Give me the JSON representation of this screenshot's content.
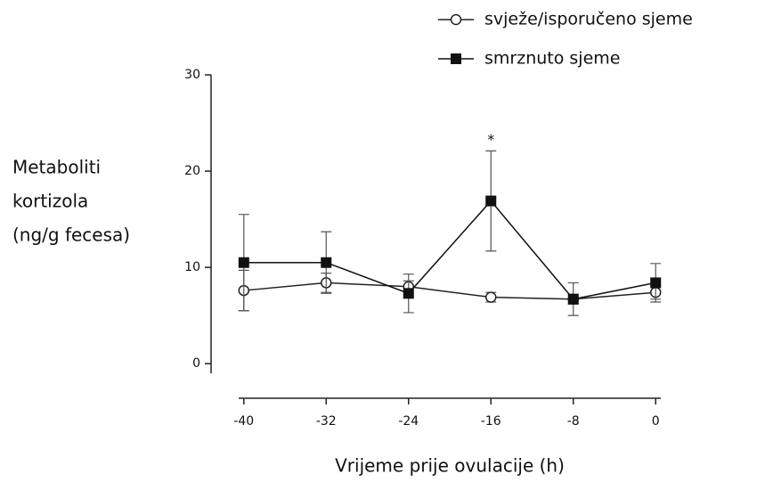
{
  "chart_data": {
    "type": "line",
    "y_label": [
      "Metaboliti",
      "kortizola",
      "(ng/g fecesa)"
    ],
    "x_label": "Vrijeme prije ovulacije (h)",
    "x": [
      -40,
      -32,
      -24,
      -16,
      -8,
      0
    ],
    "series": [
      {
        "name": "svježe/isporučeno sjeme",
        "color": "#222222",
        "marker": "circle",
        "values": [
          7.6,
          8.4,
          8.0,
          6.9,
          6.7,
          7.4
        ],
        "errors": [
          2.1,
          1.0,
          0.6,
          0.5,
          0.5,
          0.7
        ]
      },
      {
        "name": "smrznuto sjeme",
        "color": "#111111",
        "marker": "square",
        "values": [
          10.5,
          10.5,
          7.3,
          16.9,
          6.7,
          8.4
        ],
        "errors": [
          5.0,
          3.2,
          2.0,
          5.2,
          1.7,
          2.0
        ]
      }
    ],
    "annotations": [
      {
        "text": "*",
        "x": -16
      }
    ],
    "xlim": [
      -40.5,
      0.5
    ],
    "xticks": [
      -40,
      -32,
      -24,
      -16,
      -8,
      0
    ],
    "ylim": [
      -1,
      30
    ],
    "yticks": [
      0,
      10,
      20,
      30
    ],
    "legend": "top-right"
  }
}
